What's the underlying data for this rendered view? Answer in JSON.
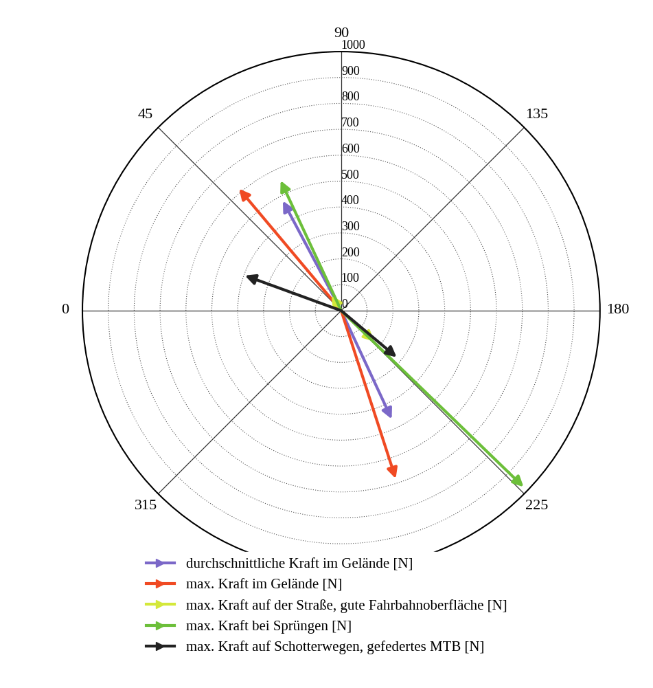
{
  "chart_data": {
    "type": "polar",
    "xlim": [
      0,
      360
    ],
    "xticks": [
      0,
      45,
      90,
      135,
      180,
      225,
      315
    ],
    "ylim": [
      0,
      1000
    ],
    "yticks": [
      0,
      100,
      200,
      300,
      400,
      500,
      600,
      700,
      800,
      900,
      1000
    ],
    "grid": true,
    "legend": "lower center",
    "series": [
      {
        "name": "durchschnittliche Kraft im Gelände [N]",
        "color": "#7b68c8",
        "x": [
          62,
          245
        ],
        "values": [
          480,
          462
        ]
      },
      {
        "name": "max. Kraft im Gelände [N]",
        "color": "#f04a23",
        "x": [
          50,
          252
        ],
        "values": [
          614,
          682
        ]
      },
      {
        "name": "max. Kraft auf der Straße, gute Fahrbahnoberfläche [N]",
        "color": "#d4e83a",
        "x": [
          57,
          223
        ],
        "values": [
          70,
          175
        ]
      },
      {
        "name": "max. Kraft bei Sprüngen [N]",
        "color": "#6cbf3a",
        "x": [
          65,
          224
        ],
        "values": [
          554,
          980
        ]
      },
      {
        "name": "max. Kraft auf Schotterwegen, gefedertes MTB [N]",
        "color": "#222222",
        "x": [
          20,
          220
        ],
        "values": [
          396,
          280
        ]
      }
    ]
  }
}
